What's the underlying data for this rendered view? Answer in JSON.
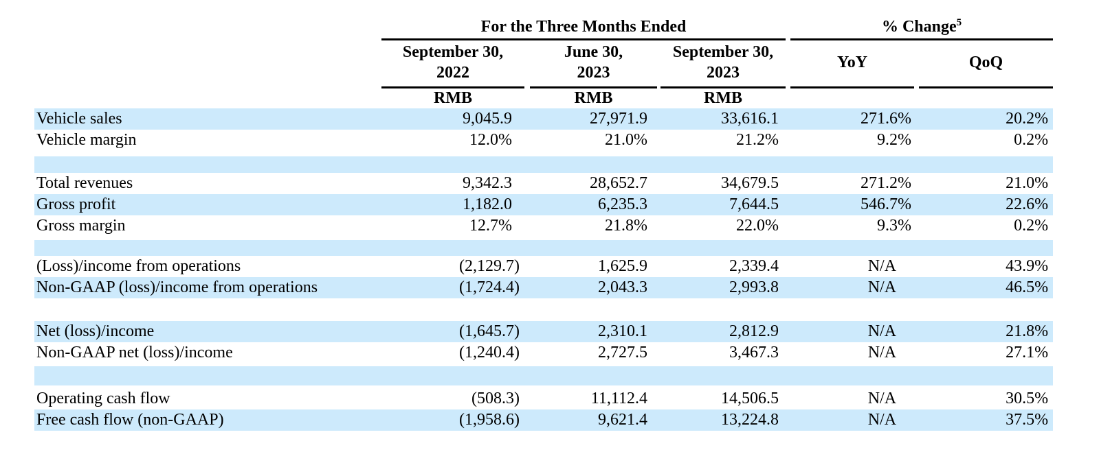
{
  "table": {
    "period_group_header": "For the Three Months Ended",
    "change_group_header": "% Change",
    "change_group_footnote": "5",
    "col_headers": {
      "c1_line1": "September 30,",
      "c1_line2": "2022",
      "c2_line1": "June 30,",
      "c2_line2": "2023",
      "c3_line1": "September 30,",
      "c3_line2": "2023",
      "c1_unit": "RMB",
      "c2_unit": "RMB",
      "c3_unit": "RMB",
      "yoy": "YoY",
      "qoq": "QoQ"
    },
    "rows": [
      {
        "label": "Vehicle sales",
        "c1": "9,045.9",
        "c2": "27,971.9",
        "c3": "33,616.1",
        "yoy": "271.6%",
        "qoq": "20.2%"
      },
      {
        "label": "Vehicle margin",
        "c1": "12.0%",
        "c2": "21.0%",
        "c3": "21.2%",
        "yoy": "9.2%",
        "qoq": "0.2%"
      },
      {
        "label": "Total revenues",
        "c1": "9,342.3",
        "c2": "28,652.7",
        "c3": "34,679.5",
        "yoy": "271.2%",
        "qoq": "21.0%"
      },
      {
        "label": "Gross profit",
        "c1": "1,182.0",
        "c2": "6,235.3",
        "c3": "7,644.5",
        "yoy": "546.7%",
        "qoq": "22.6%"
      },
      {
        "label": "Gross margin",
        "c1": "12.7%",
        "c2": "21.8%",
        "c3": "22.0%",
        "yoy": "9.3%",
        "qoq": "0.2%"
      },
      {
        "label": "(Loss)/income from operations",
        "c1": "(2,129.7)",
        "c2": "1,625.9",
        "c3": "2,339.4",
        "yoy": "N/A",
        "qoq": "43.9%"
      },
      {
        "label": "Non-GAAP (loss)/income from operations",
        "c1": "(1,724.4)",
        "c2": "2,043.3",
        "c3": "2,993.8",
        "yoy": "N/A",
        "qoq": "46.5%"
      },
      {
        "label": "Net (loss)/income",
        "c1": "(1,645.7)",
        "c2": "2,310.1",
        "c3": "2,812.9",
        "yoy": "N/A",
        "qoq": "21.8%"
      },
      {
        "label": "Non-GAAP net (loss)/income",
        "c1": "(1,240.4)",
        "c2": "2,727.5",
        "c3": "3,467.3",
        "yoy": "N/A",
        "qoq": "27.1%"
      },
      {
        "label": "Operating cash flow",
        "c1": "(508.3)",
        "c2": "11,112.4",
        "c3": "14,506.5",
        "yoy": "N/A",
        "qoq": "30.5%"
      },
      {
        "label": "Free cash flow (non-GAAP)",
        "c1": "(1,958.6)",
        "c2": "9,621.4",
        "c3": "13,224.8",
        "yoy": "N/A",
        "qoq": "37.5%"
      }
    ]
  },
  "colors": {
    "row_highlight_blue": "#cdeafc",
    "rule_black": "#000000"
  }
}
